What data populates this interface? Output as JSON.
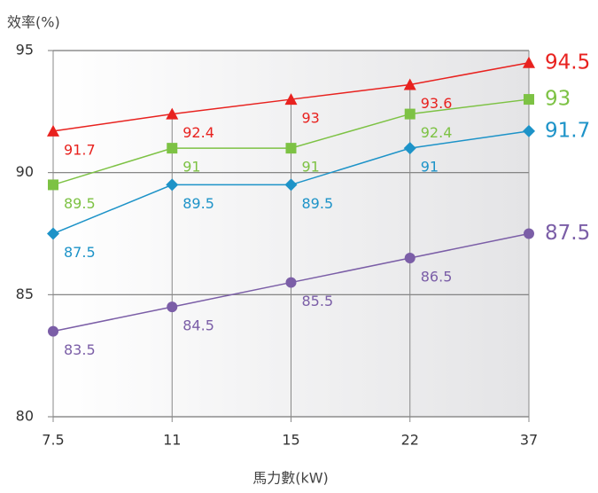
{
  "chart_data": {
    "type": "line",
    "y_axis_title": "效率(%)",
    "x_axis_title": "馬力數(kW)",
    "categories": [
      "7.5",
      "11",
      "15",
      "22",
      "37"
    ],
    "ylim": [
      80,
      95
    ],
    "yticks": [
      80,
      85,
      90,
      95
    ],
    "grid": true,
    "series": [
      {
        "name": "red",
        "color": "#e8221f",
        "marker": "triangle",
        "values": [
          91.7,
          92.4,
          93,
          93.6,
          94.5
        ]
      },
      {
        "name": "green",
        "color": "#7dc244",
        "marker": "square",
        "values": [
          89.5,
          91,
          91,
          92.4,
          93
        ]
      },
      {
        "name": "blue",
        "color": "#1d93c8",
        "marker": "diamond",
        "values": [
          87.5,
          89.5,
          89.5,
          91,
          91.7
        ]
      },
      {
        "name": "purple",
        "color": "#7b5ea7",
        "marker": "circle",
        "values": [
          83.5,
          84.5,
          85.5,
          86.5,
          87.5
        ]
      }
    ]
  }
}
